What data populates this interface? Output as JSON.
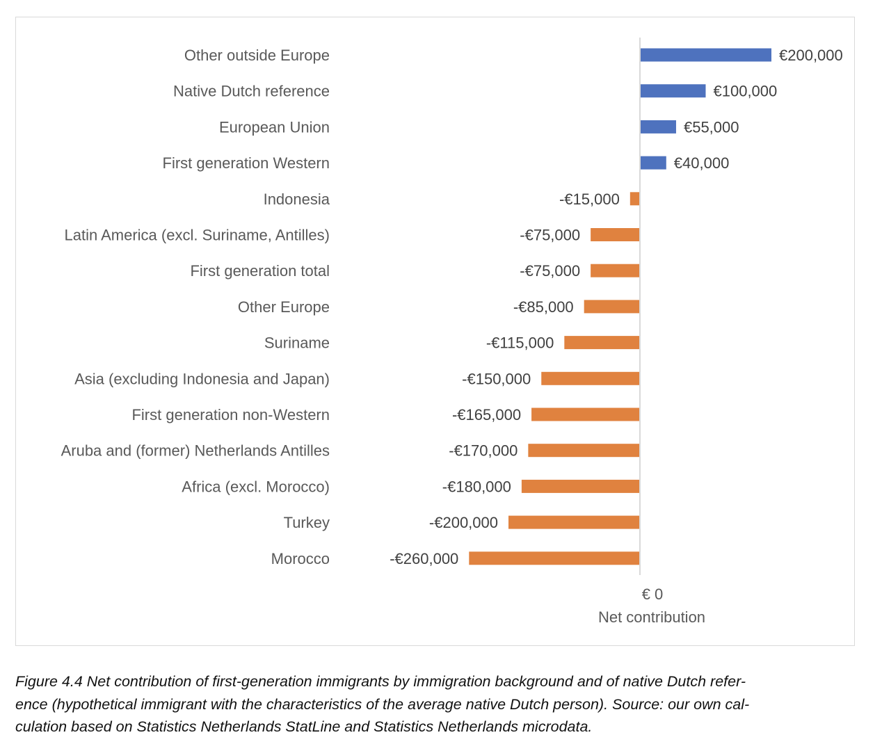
{
  "chart_data": {
    "type": "bar",
    "orientation": "horizontal",
    "categories": [
      "Other outside Europe",
      "Native Dutch reference",
      "European Union",
      "First generation Western",
      "Indonesia",
      "Latin America (excl. Suriname, Antilles)",
      "First generation total",
      "Other Europe",
      "Suriname",
      "Asia (excluding Indonesia and Japan)",
      "First generation non-Western",
      "Aruba and (former) Netherlands Antilles",
      "Africa (excl. Morocco)",
      "Turkey",
      "Morocco"
    ],
    "values": [
      200000,
      100000,
      55000,
      40000,
      -15000,
      -75000,
      -75000,
      -85000,
      -115000,
      -150000,
      -165000,
      -170000,
      -180000,
      -200000,
      -260000
    ],
    "data_labels": [
      "€200,000",
      "€100,000",
      "€55,000",
      "€40,000",
      "-€15,000",
      "-€75,000",
      "-€75,000",
      "-€85,000",
      "-€115,000",
      "-€150,000",
      "-€165,000",
      "-€170,000",
      "-€180,000",
      "-€200,000",
      "-€260,000"
    ],
    "xlabel": "Net contribution",
    "x_tick_labels": [
      "€ 0"
    ],
    "xlim": [
      -260000,
      200000
    ],
    "grid": false,
    "colors": {
      "positive": "#4E72BE",
      "negative": "#E0823F",
      "axis": "#d9d9d9"
    }
  },
  "caption": {
    "lines": [
      "Figure 4.4 Net contribution of first-generation immigrants by immigration background and of native Dutch refer-",
      "ence (hypothetical immigrant with the characteristics of the average native Dutch person). Source: our own cal-",
      "culation based on Statistics Netherlands StatLine and Statistics Netherlands microdata."
    ]
  }
}
